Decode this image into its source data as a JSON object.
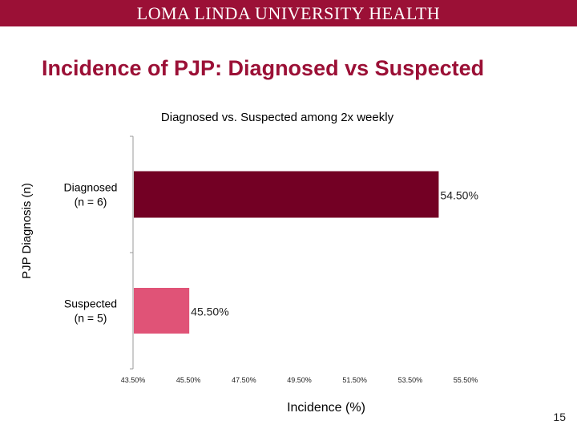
{
  "header": {
    "institution": "LOMA LINDA UNIVERSITY HEALTH"
  },
  "slide": {
    "title": "Incidence of PJP: Diagnosed vs Suspected",
    "number": "15"
  },
  "colors": {
    "banner": "#9b1036",
    "title": "#9b1036",
    "diagnosed_bar": "#730024",
    "suspected_bar": "#e05377"
  },
  "chart_data": {
    "type": "bar",
    "orientation": "horizontal",
    "title": "Diagnosed vs. Suspected among 2x weekly",
    "xlabel": "Incidence (%)",
    "ylabel": "PJP Diagnosis (n)",
    "categories": [
      {
        "line1": "Diagnosed",
        "line2": "(n = 6)"
      },
      {
        "line1": "Suspected",
        "line2": "(n = 5)"
      }
    ],
    "values": [
      54.5,
      45.5
    ],
    "data_labels": [
      "54.50%",
      "45.50%"
    ],
    "xlim": [
      43.5,
      55.5
    ],
    "xticks": [
      43.5,
      45.5,
      47.5,
      49.5,
      51.5,
      53.5,
      55.5
    ],
    "xtick_labels": [
      "43.50%",
      "45.50%",
      "47.50%",
      "49.50%",
      "51.50%",
      "53.50%",
      "55.50%"
    ],
    "grid": false,
    "legend": "none"
  }
}
